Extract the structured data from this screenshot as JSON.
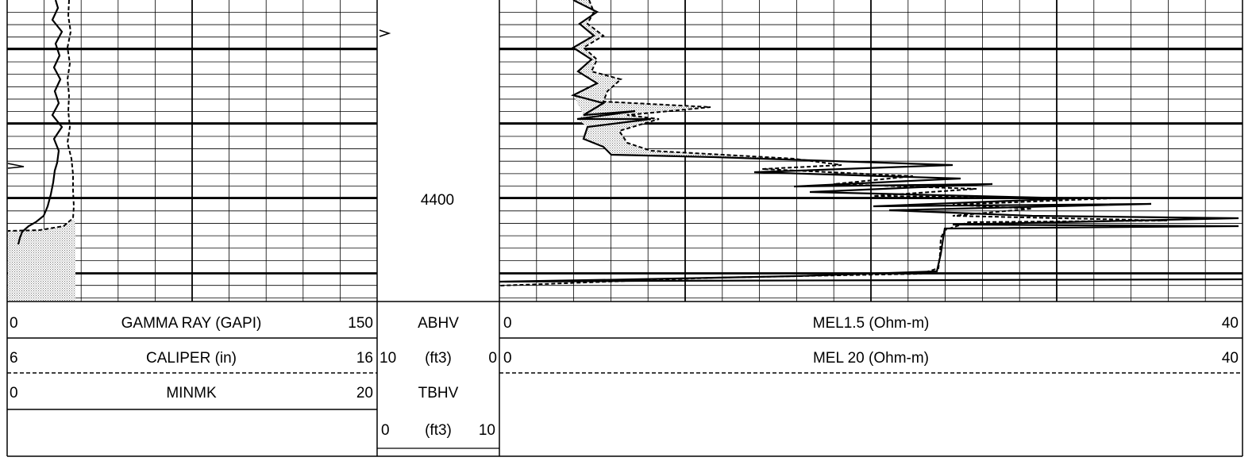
{
  "depth_label": "4400",
  "chart_data": {
    "type": "line",
    "title": "",
    "depth_marker": 4400,
    "tracks": [
      {
        "name": "track-1",
        "curves": [
          {
            "name": "GAMMA RAY (GAPI)",
            "min": "0",
            "max": "150",
            "style": "solid"
          },
          {
            "name": "CALIPER (in)",
            "min": "6",
            "max": "16",
            "style": "dashed"
          },
          {
            "name": "MINMK",
            "min": "0",
            "max": "20",
            "style": "solid"
          }
        ]
      },
      {
        "name": "depth-track",
        "curves": [
          {
            "name": "ABHV",
            "unit": "(ft3)",
            "min": "10",
            "max": "0"
          },
          {
            "name": "TBHV",
            "unit": "(ft3)",
            "min": "0",
            "max": "10"
          }
        ]
      },
      {
        "name": "track-2",
        "curves": [
          {
            "name": "MEL1.5 (Ohm-m)",
            "min": "0",
            "max": "40",
            "style": "solid"
          },
          {
            "name": "MEL 20 (Ohm-m)",
            "min": "0",
            "max": "40",
            "style": "dashed"
          }
        ]
      }
    ],
    "grid": true,
    "fill": "stippled gray between curves"
  }
}
